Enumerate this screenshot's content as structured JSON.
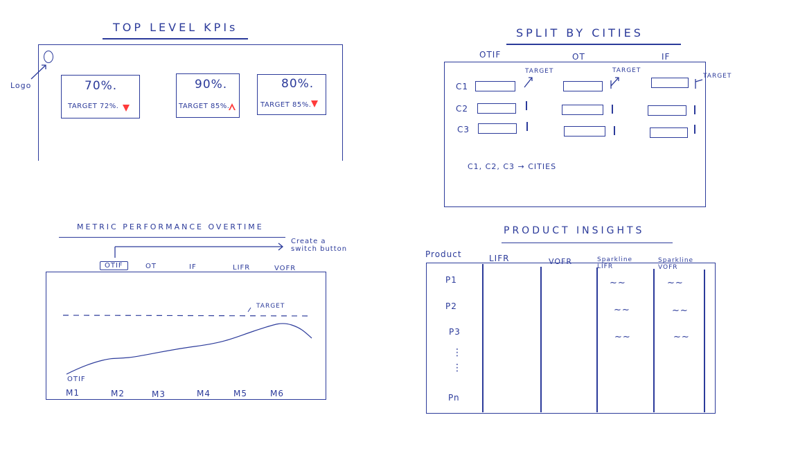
{
  "top_kpis": {
    "title": "TOP LEVEL KPIs",
    "logo_label": "Logo",
    "cards": [
      {
        "value": "70%.",
        "target": "TARGET 72%.",
        "trend": "down"
      },
      {
        "value": "90%.",
        "target": "TARGET 85%.",
        "trend": "up"
      },
      {
        "value": "80%.",
        "target": "TARGET 85%.",
        "trend": "down"
      }
    ],
    "colors": {
      "ink": "#2b3a9a",
      "alert": "#ff3b3b"
    }
  },
  "split_by_cities": {
    "title": "SPLIT BY CITIES",
    "columns": [
      "OTIF",
      "OT",
      "IF"
    ],
    "rows": [
      "C1",
      "C2",
      "C3"
    ],
    "target_labels": [
      "TARGET",
      "TARGET",
      "TARGET"
    ],
    "note": "C1, C2, C3 → CITIES"
  },
  "metric_performance": {
    "title": "METRIC PERFORMANCE OVERTIME",
    "switch_note": "Create a switch button",
    "tabs": [
      "OTIF",
      "OT",
      "IF",
      "LIFR",
      "VOFR"
    ],
    "active_tab": "OTIF",
    "target_label": "TARGET",
    "series_label": "OTIF",
    "months": [
      "M1",
      "M2",
      "M3",
      "M4",
      "M5",
      "M6"
    ]
  },
  "product_insights": {
    "title": "PRODUCT INSIGHTS",
    "headers": [
      "Product",
      "LIFR",
      "VOFR",
      "Sparkline LIFR",
      "Sparkline VOFR"
    ],
    "products": [
      "P1",
      "P2",
      "P3",
      "Pn"
    ],
    "ellipsis": "⋮",
    "sparkline_glyph": "~~"
  }
}
